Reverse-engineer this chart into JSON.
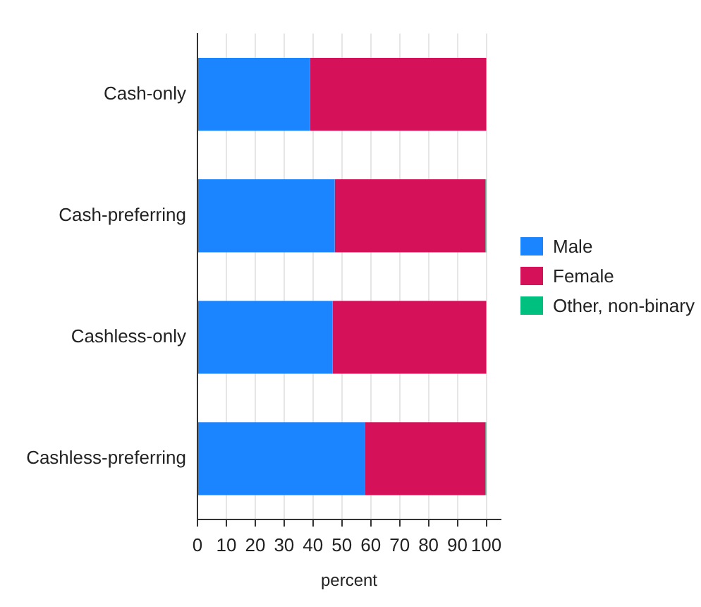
{
  "chart_data": {
    "type": "bar",
    "orientation": "horizontal",
    "stacked": true,
    "xlabel": "percent",
    "categories": [
      "Cash-only",
      "Cash-preferring",
      "Cashless-only",
      "Cashless-preferring"
    ],
    "series": [
      {
        "name": "Male",
        "color": "#1a85ff",
        "values": [
          39,
          47.5,
          46.8,
          58.1
        ]
      },
      {
        "name": "Female",
        "color": "#d41159",
        "values": [
          61,
          52.2,
          53.2,
          41.6
        ]
      },
      {
        "name": "Other, non-binary",
        "color": "#00c07f",
        "values": [
          0,
          0.3,
          0,
          0.3
        ]
      }
    ],
    "xlim": [
      0,
      105
    ],
    "xticks": [
      0,
      10,
      20,
      30,
      40,
      50,
      60,
      70,
      80,
      90,
      100
    ],
    "grid": "x",
    "legend": "right"
  }
}
